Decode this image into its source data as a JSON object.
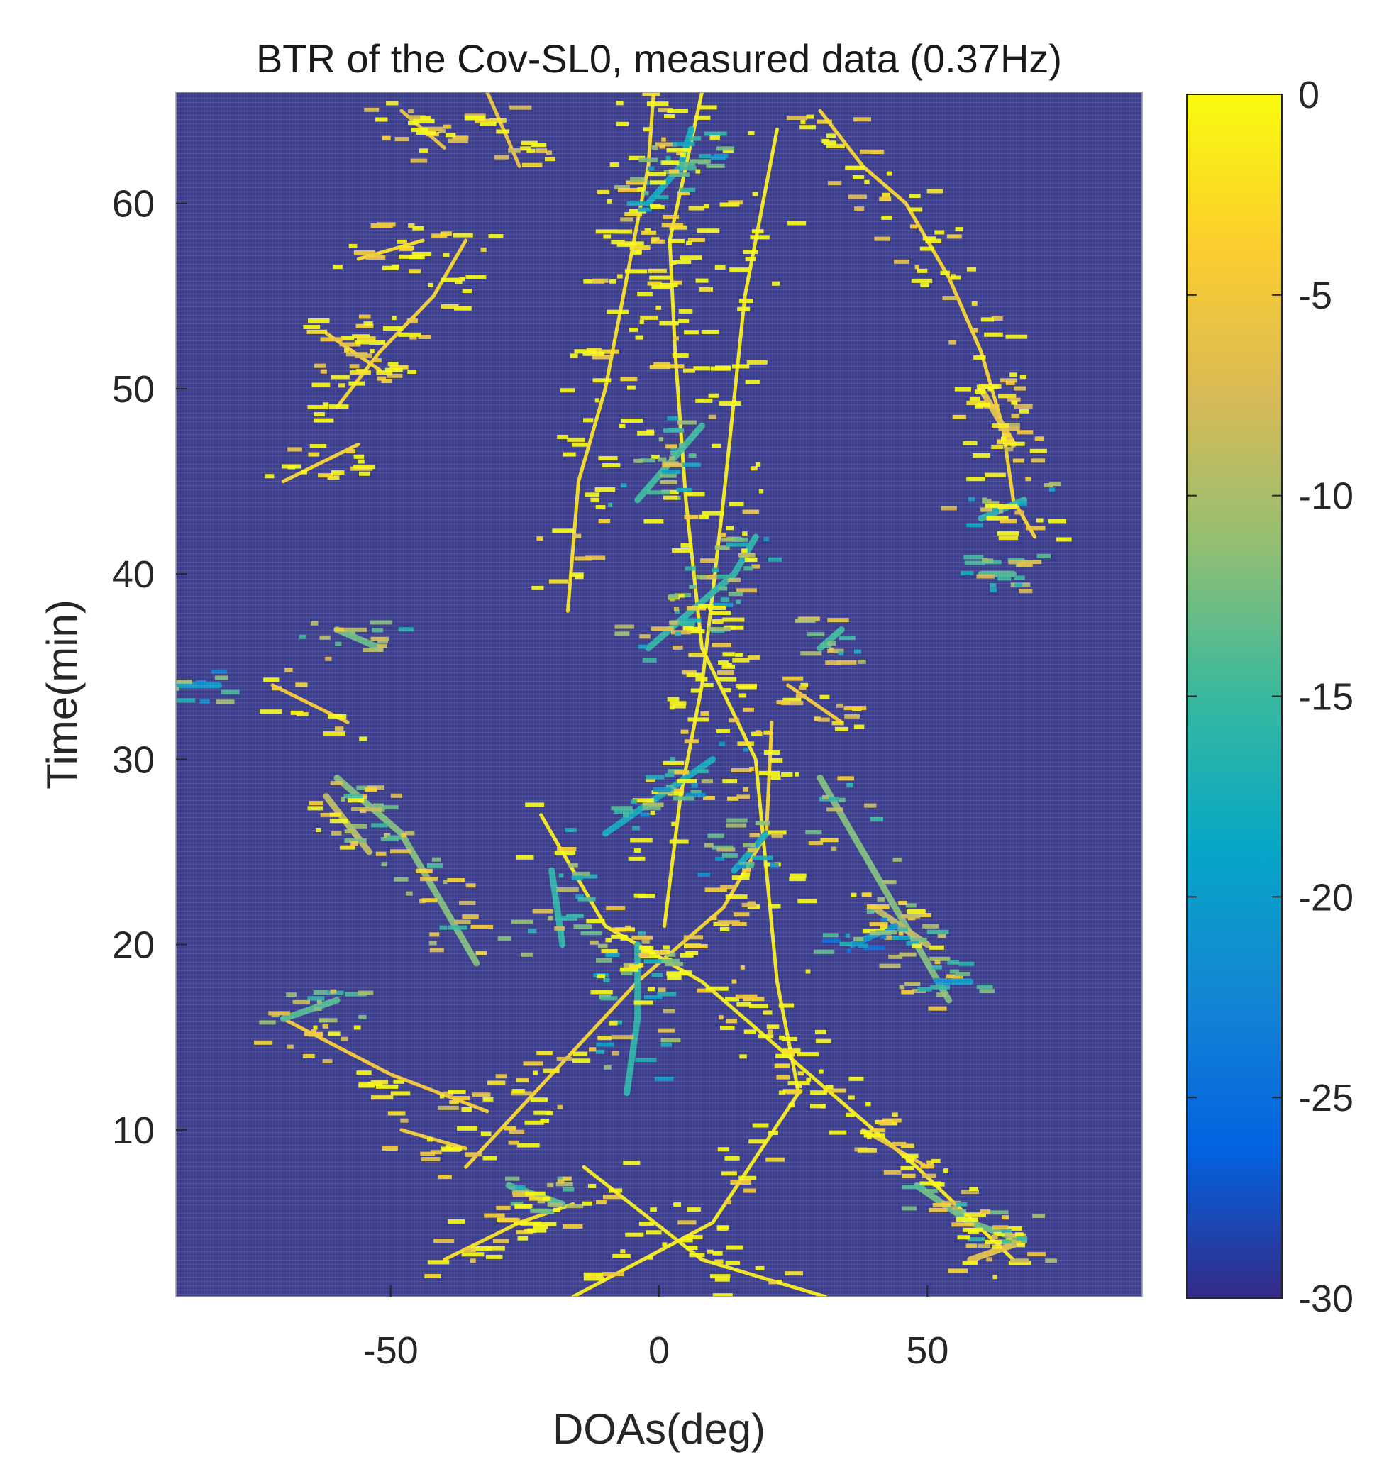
{
  "chart_data": {
    "type": "heatmap",
    "title": "BTR of the Cov-SL0, measured data (0.37Hz)",
    "xlabel": "DOAs(deg)",
    "ylabel": "Time(min)",
    "xlim": [
      -90,
      90
    ],
    "ylim": [
      1,
      66
    ],
    "xticks": [
      -50,
      0,
      50
    ],
    "yticks": [
      10,
      20,
      30,
      40,
      50,
      60
    ],
    "colorbar": {
      "colormap": "parula",
      "range": [
        -30,
        0
      ],
      "ticks": [
        0,
        -5,
        -10,
        -15,
        -20,
        -25,
        -30
      ],
      "stops": [
        "#352a87",
        "#0363e1",
        "#1485d4",
        "#06a7c6",
        "#38b99e",
        "#92bf73",
        "#d9ba56",
        "#fcce2e",
        "#f9fb0e"
      ]
    },
    "background_level": -30,
    "grid": false,
    "tracks": [
      {
        "level": -1,
        "points": [
          [
            -16,
            1
          ],
          [
            10,
            5
          ],
          [
            26,
            12
          ],
          [
            22,
            18
          ],
          [
            18,
            30
          ],
          [
            8,
            36
          ],
          [
            5,
            44
          ],
          [
            3,
            52
          ],
          [
            2,
            58
          ],
          [
            8,
            66
          ]
        ]
      },
      {
        "level": -1,
        "points": [
          [
            -14,
            8
          ],
          [
            8,
            3
          ],
          [
            31,
            1
          ]
        ]
      },
      {
        "level": -1,
        "points": [
          [
            -22,
            27
          ],
          [
            -10,
            21
          ],
          [
            8,
            18
          ],
          [
            24,
            14
          ],
          [
            48,
            8
          ],
          [
            66,
            3
          ]
        ]
      },
      {
        "level": -1,
        "points": [
          [
            1,
            21
          ],
          [
            4,
            28
          ],
          [
            8,
            34
          ],
          [
            10,
            39
          ],
          [
            12,
            44
          ],
          [
            16,
            55
          ],
          [
            22,
            64
          ]
        ]
      },
      {
        "level": -2,
        "points": [
          [
            -17,
            38
          ],
          [
            -15,
            45
          ],
          [
            -10,
            50
          ],
          [
            -6,
            56
          ],
          [
            -2,
            62
          ],
          [
            -1,
            66
          ]
        ]
      },
      {
        "level": -3,
        "points": [
          [
            -36,
            8
          ],
          [
            -20,
            13
          ],
          [
            -4,
            18
          ],
          [
            12,
            22
          ],
          [
            20,
            26
          ],
          [
            21,
            32
          ]
        ]
      },
      {
        "level": -4,
        "points": [
          [
            -70,
            16
          ],
          [
            -50,
            13
          ],
          [
            -32,
            11
          ]
        ]
      },
      {
        "level": -3,
        "points": [
          [
            -70,
            45
          ],
          [
            -56,
            47
          ]
        ]
      },
      {
        "level": -4,
        "points": [
          [
            -72,
            34
          ],
          [
            -58,
            32
          ]
        ]
      },
      {
        "level": -3,
        "points": [
          [
            -60,
            49
          ],
          [
            -52,
            52
          ],
          [
            -42,
            55
          ],
          [
            -36,
            58
          ]
        ]
      },
      {
        "level": -3,
        "points": [
          [
            -62,
            53
          ],
          [
            -52,
            51
          ]
        ]
      },
      {
        "level": -3,
        "points": [
          [
            30,
            65
          ],
          [
            38,
            62
          ],
          [
            46,
            60
          ],
          [
            54,
            56
          ],
          [
            60,
            52
          ],
          [
            64,
            48
          ],
          [
            66,
            44
          ],
          [
            70,
            42
          ]
        ]
      },
      {
        "level": -6,
        "points": [
          [
            60,
            50
          ],
          [
            66,
            47
          ]
        ]
      },
      {
        "level": -2,
        "points": [
          [
            -40,
            3
          ],
          [
            -26,
            5
          ],
          [
            -16,
            6
          ]
        ]
      },
      {
        "level": -4,
        "points": [
          [
            -48,
            10
          ],
          [
            -36,
            9
          ]
        ]
      },
      {
        "level": -5,
        "points": [
          [
            38,
            10
          ],
          [
            50,
            8
          ]
        ]
      },
      {
        "level": -6,
        "points": [
          [
            58,
            3
          ],
          [
            68,
            4
          ]
        ]
      },
      {
        "level": -5,
        "points": [
          [
            -48,
            65
          ],
          [
            -40,
            63
          ]
        ]
      },
      {
        "level": -5,
        "points": [
          [
            -32,
            66
          ],
          [
            -26,
            62
          ]
        ]
      },
      {
        "level": -4,
        "points": [
          [
            24,
            34
          ],
          [
            34,
            32
          ]
        ]
      },
      {
        "level": -2,
        "points": [
          [
            -56,
            57
          ],
          [
            -44,
            58
          ]
        ]
      },
      {
        "level": -12,
        "points": [
          [
            -60,
            29
          ],
          [
            -48,
            26
          ],
          [
            -40,
            22
          ],
          [
            -34,
            19
          ]
        ]
      },
      {
        "level": -9,
        "points": [
          [
            -62,
            28
          ],
          [
            -54,
            25
          ]
        ]
      },
      {
        "level": -12,
        "points": [
          [
            30,
            29
          ],
          [
            40,
            24
          ],
          [
            48,
            20
          ],
          [
            54,
            17
          ]
        ]
      },
      {
        "level": -9,
        "points": [
          [
            40,
            22
          ],
          [
            50,
            20
          ]
        ]
      },
      {
        "level": -14,
        "points": [
          [
            -70,
            16
          ],
          [
            -60,
            17
          ]
        ]
      },
      {
        "level": -13,
        "points": [
          [
            -60,
            37
          ],
          [
            -52,
            36
          ]
        ]
      },
      {
        "level": -14,
        "points": [
          [
            -28,
            7
          ],
          [
            -18,
            6
          ]
        ]
      },
      {
        "level": -13,
        "points": [
          [
            48,
            7
          ],
          [
            58,
            5
          ],
          [
            68,
            4
          ]
        ]
      },
      {
        "level": -16,
        "points": [
          [
            -6,
            12
          ],
          [
            -4,
            16
          ],
          [
            -4,
            20
          ]
        ]
      },
      {
        "level": -16,
        "points": [
          [
            -18,
            20
          ],
          [
            -20,
            24
          ]
        ]
      },
      {
        "level": -16,
        "points": [
          [
            -2,
            36
          ],
          [
            6,
            38
          ],
          [
            14,
            40
          ],
          [
            18,
            42
          ]
        ]
      },
      {
        "level": -15,
        "points": [
          [
            -4,
            44
          ],
          [
            2,
            46
          ],
          [
            8,
            48
          ]
        ]
      },
      {
        "level": -16,
        "points": [
          [
            60,
            43
          ],
          [
            68,
            44
          ]
        ]
      },
      {
        "level": -14,
        "points": [
          [
            60,
            40
          ],
          [
            66,
            40
          ]
        ]
      },
      {
        "level": -15,
        "points": [
          [
            30,
            36
          ],
          [
            34,
            37
          ]
        ]
      },
      {
        "level": -20,
        "points": [
          [
            -90,
            34
          ],
          [
            -82,
            34
          ]
        ]
      },
      {
        "level": -18,
        "points": [
          [
            -10,
            26
          ],
          [
            0,
            28
          ],
          [
            10,
            30
          ]
        ]
      },
      {
        "level": -18,
        "points": [
          [
            -2,
            60
          ],
          [
            4,
            62
          ],
          [
            6,
            64
          ]
        ]
      },
      {
        "level": -20,
        "points": [
          [
            52,
            18
          ],
          [
            58,
            18
          ]
        ]
      },
      {
        "level": -18,
        "points": [
          [
            14,
            24
          ],
          [
            20,
            26
          ]
        ]
      },
      {
        "level": -21,
        "points": [
          [
            36,
            20
          ],
          [
            44,
            21
          ]
        ]
      }
    ],
    "speckle_count": 1300,
    "speckle_seed": 7
  }
}
